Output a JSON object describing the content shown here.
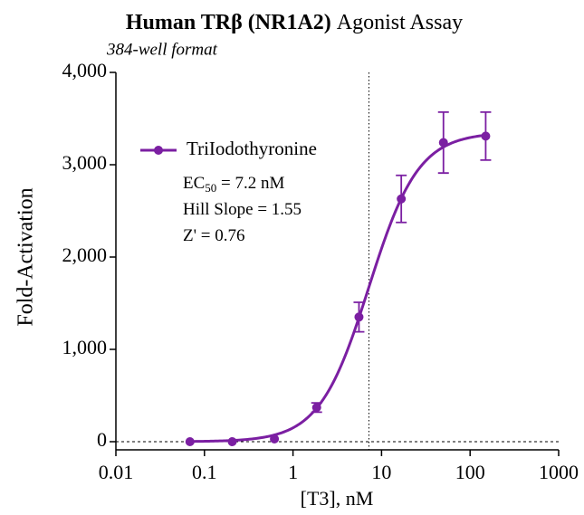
{
  "chart_data": {
    "type": "dose-response",
    "title": {
      "bold": "Human TRβ (NR1A2)",
      "regular": "Agonist Assay"
    },
    "subtitle": "384-well format",
    "x_label": "[T3], nM",
    "y_label": "Fold-Activation",
    "xscale": "log",
    "xlim": [
      0.01,
      1000
    ],
    "xticks": [
      0.01,
      0.1,
      1,
      10,
      100,
      1000
    ],
    "ylim": [
      0,
      4000
    ],
    "yticks": [
      0,
      {
        "value": 1000,
        "label": "1,000"
      },
      {
        "value": 2000,
        "label": "2,000"
      },
      {
        "value": 3000,
        "label": "3,000"
      },
      {
        "value": 4000,
        "label": "4,000"
      }
    ],
    "series": [
      {
        "name": "TriIodothyronine",
        "color": "#7b1fa2",
        "x": [
          0.0686,
          0.206,
          0.617,
          1.85,
          5.56,
          16.7,
          50,
          150
        ],
        "values": [
          0,
          0,
          30,
          370,
          1350,
          2630,
          3240,
          3310
        ],
        "errors": [
          0,
          0,
          0,
          50,
          160,
          255,
          330,
          260
        ]
      }
    ],
    "fit": {
      "ec50": 7.2,
      "hill_slope": 1.55,
      "top": 3350,
      "bottom": 0
    },
    "annotations": [
      {
        "text": "EC",
        "sub": "50",
        "rest": " = 7.2 nM"
      },
      {
        "text": "Hill Slope = 1.55"
      },
      {
        "text": "Z' = 0.76"
      }
    ]
  }
}
